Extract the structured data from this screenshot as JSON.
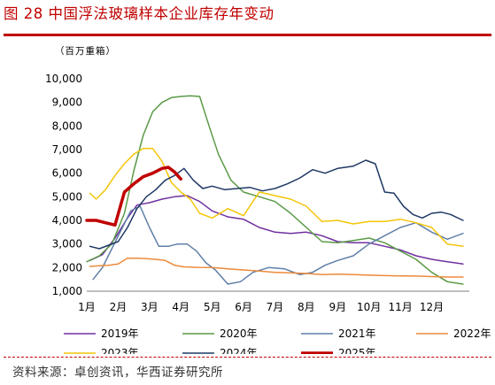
{
  "title": "图 28 中国浮法玻璃样本企业库存年变动",
  "source": "资料来源：卓创资讯，华西证券研究所",
  "colors": {
    "title": "#c00000",
    "2019年": "#7030a0",
    "2020年": "#5b9a47",
    "2021年": "#5f7fa8",
    "2022年": "#ed8a3b",
    "2023年": "#f4c50a",
    "2024年": "#1f3864",
    "2025年": "#c00000"
  },
  "chart_data": {
    "type": "line",
    "unit_label": "（百万重箱）",
    "ylim": [
      1000,
      10000
    ],
    "yticks": [
      1000,
      2000,
      3000,
      4000,
      5000,
      6000,
      7000,
      8000,
      9000,
      10000
    ],
    "ytick_labels": [
      "1,000",
      "2,000",
      "3,000",
      "4,000",
      "5,000",
      "6,000",
      "7,000",
      "8,000",
      "9,000",
      "10,000"
    ],
    "xlim": [
      1,
      13.2
    ],
    "xticks": [
      1,
      2,
      3,
      4,
      5,
      6,
      7,
      8,
      9,
      10,
      11,
      12
    ],
    "xtick_labels": [
      "1月",
      "2月",
      "3月",
      "4月",
      "5月",
      "6月",
      "7月",
      "8月",
      "9月",
      "10月",
      "11月",
      "12月"
    ],
    "legend_position": "bottom",
    "series": [
      {
        "name": "2019年",
        "x": [
          1.1,
          1.5,
          1.9,
          2.3,
          2.6,
          2.8,
          3.0,
          3.4,
          3.8,
          4.2,
          4.6,
          5.0,
          5.5,
          6.0,
          6.5,
          7.0,
          7.5,
          8.0,
          8.5,
          9.0,
          9.5,
          10.0,
          10.5,
          11.0,
          11.5,
          12.0,
          12.5,
          13.0
        ],
        "y": [
          2300,
          2550,
          3250,
          4100,
          4650,
          4700,
          4750,
          4900,
          5000,
          5050,
          4800,
          4400,
          4150,
          4050,
          3700,
          3500,
          3450,
          3500,
          3350,
          3100,
          3050,
          3050,
          2900,
          2750,
          2500,
          2350,
          2250,
          2150
        ]
      },
      {
        "name": "2020年",
        "x": [
          1.0,
          1.4,
          1.8,
          2.2,
          2.5,
          2.8,
          3.1,
          3.4,
          3.7,
          4.0,
          4.3,
          4.6,
          4.9,
          5.2,
          5.6,
          6.0,
          6.5,
          7.0,
          7.5,
          8.0,
          8.5,
          9.0,
          9.5,
          10.0,
          10.5,
          11.0,
          11.5,
          12.0,
          12.5,
          13.0
        ],
        "y": [
          2250,
          2500,
          3000,
          4300,
          6100,
          7600,
          8600,
          9000,
          9200,
          9250,
          9280,
          9250,
          8000,
          6800,
          5700,
          5200,
          5000,
          4800,
          4300,
          3700,
          3100,
          3050,
          3150,
          3250,
          3050,
          2700,
          2350,
          1800,
          1400,
          1300
        ]
      },
      {
        "name": "2021年",
        "x": [
          1.2,
          1.5,
          1.8,
          2.1,
          2.4,
          2.7,
          3.0,
          3.3,
          3.6,
          3.9,
          4.2,
          4.5,
          4.8,
          5.1,
          5.5,
          5.9,
          6.3,
          6.8,
          7.3,
          7.8,
          8.2,
          8.6,
          9.0,
          9.5,
          10.0,
          10.5,
          11.0,
          11.5,
          12.0,
          12.5,
          13.0
        ],
        "y": [
          1500,
          2000,
          2800,
          3600,
          4400,
          4600,
          3700,
          2900,
          2900,
          3000,
          3000,
          2700,
          2200,
          1900,
          1300,
          1400,
          1800,
          2000,
          1950,
          1700,
          1800,
          2100,
          2300,
          2500,
          3000,
          3350,
          3700,
          3900,
          3500,
          3200,
          3450
        ]
      },
      {
        "name": "2022年",
        "x": [
          1.1,
          1.4,
          1.7,
          2.0,
          2.3,
          2.6,
          2.9,
          3.2,
          3.5,
          3.8,
          4.1,
          4.5,
          5.0,
          5.5,
          6.0,
          6.5,
          7.0,
          7.5,
          8.0,
          8.5,
          9.0,
          9.5,
          10.0,
          10.5,
          11.0,
          11.5,
          12.0,
          12.5,
          13.0
        ],
        "y": [
          2050,
          2080,
          2100,
          2150,
          2400,
          2400,
          2380,
          2350,
          2300,
          2100,
          2030,
          2010,
          2000,
          1950,
          1900,
          1850,
          1800,
          1780,
          1750,
          1700,
          1720,
          1700,
          1680,
          1660,
          1650,
          1640,
          1620,
          1600,
          1600
        ]
      },
      {
        "name": "2023年",
        "x": [
          1.1,
          1.3,
          1.6,
          1.9,
          2.2,
          2.5,
          2.8,
          3.1,
          3.4,
          3.7,
          4.0,
          4.3,
          4.6,
          5.0,
          5.5,
          6.0,
          6.5,
          7.0,
          7.5,
          8.0,
          8.5,
          9.0,
          9.5,
          10.0,
          10.5,
          11.0,
          11.5,
          12.0,
          12.5,
          13.0
        ],
        "y": [
          5150,
          4900,
          5300,
          5900,
          6400,
          6800,
          7050,
          7050,
          6500,
          5600,
          5200,
          4900,
          4300,
          4100,
          4500,
          4200,
          5200,
          5050,
          4900,
          4600,
          3950,
          4000,
          3850,
          3950,
          3950,
          4050,
          3900,
          3700,
          3000,
          2900
        ]
      },
      {
        "name": "2024年",
        "x": [
          1.1,
          1.4,
          1.7,
          2.0,
          2.3,
          2.6,
          2.9,
          3.2,
          3.5,
          3.8,
          4.1,
          4.4,
          4.7,
          5.0,
          5.4,
          5.8,
          6.2,
          6.6,
          7.0,
          7.4,
          7.8,
          8.2,
          8.6,
          9.0,
          9.5,
          9.9,
          10.2,
          10.5,
          10.8,
          11.1,
          11.4,
          11.7,
          12.0,
          12.3,
          12.6,
          13.0
        ],
        "y": [
          2900,
          2800,
          2950,
          3100,
          3700,
          4500,
          5000,
          5300,
          5700,
          5900,
          6200,
          5700,
          5350,
          5450,
          5300,
          5350,
          5400,
          5250,
          5350,
          5550,
          5800,
          6150,
          6000,
          6200,
          6300,
          6550,
          6400,
          5200,
          5150,
          4600,
          4250,
          4100,
          4300,
          4350,
          4250,
          4000
        ]
      },
      {
        "name": "2025年",
        "x": [
          1.0,
          1.3,
          1.6,
          1.9,
          2.2,
          2.5,
          2.8,
          3.1,
          3.4,
          3.6,
          3.8,
          4.0
        ],
        "y": [
          4000,
          4000,
          3900,
          3800,
          5200,
          5550,
          5850,
          6000,
          6200,
          6250,
          6050,
          5750
        ]
      }
    ]
  }
}
